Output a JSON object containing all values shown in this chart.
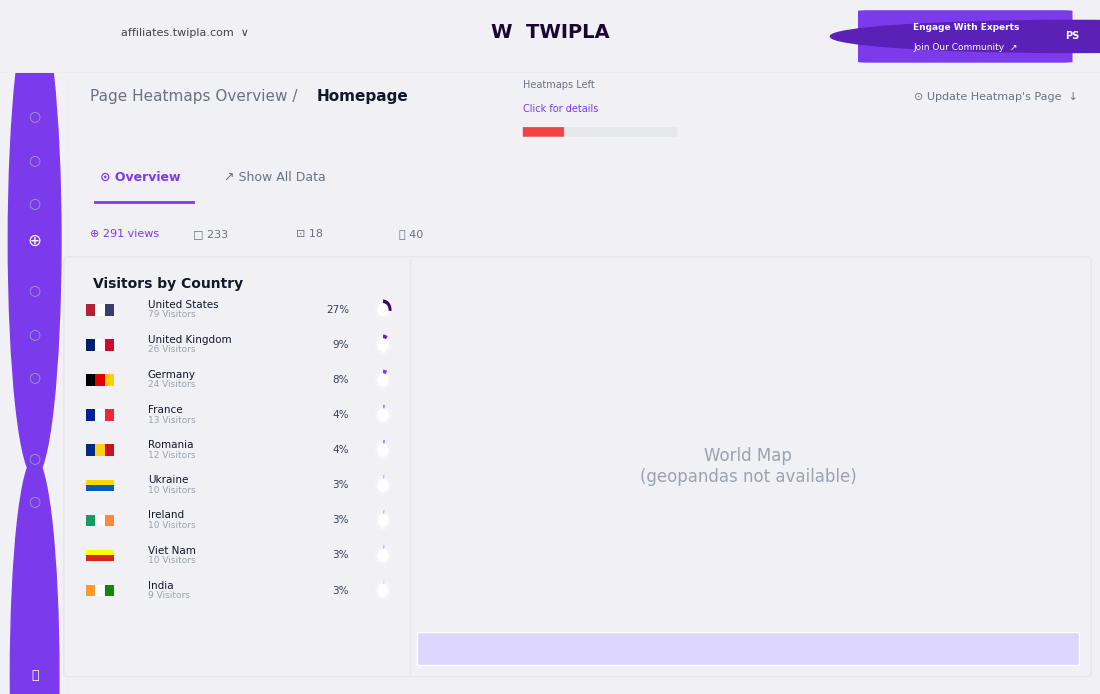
{
  "bg_color": "#f0f0f5",
  "panel_color": "#ffffff",
  "title_main": "Page Heatmaps Overview / ",
  "title_bold": "Homepage",
  "header_bg": "#ffffff",
  "sidebar_color": "#2d1b69",
  "top_bar_color": "#ffffff",
  "twipla_color": "#6b21a8",
  "cta_bg": "#7c3aed",
  "cta_text": "Engage With Experts\nJoin Our Community",
  "nav_items": [
    "affiliates.twipla.com"
  ],
  "tab_views": "291 views",
  "tab_desktop": "233",
  "tab_tablet": "18",
  "tab_mobile": "40",
  "section_title": "Visitors by Country",
  "countries": [
    {
      "name": "United States",
      "visitors": 79,
      "pct": 27,
      "color": "#3b0764"
    },
    {
      "name": "United Kingdom",
      "visitors": 26,
      "pct": 9,
      "color": "#6b21a8"
    },
    {
      "name": "Germany",
      "visitors": 24,
      "pct": 8,
      "color": "#7c3aed"
    },
    {
      "name": "France",
      "visitors": 13,
      "pct": 4,
      "color": "#a78bfa"
    },
    {
      "name": "Romania",
      "visitors": 12,
      "pct": 4,
      "color": "#a78bfa"
    },
    {
      "name": "Ukraine",
      "visitors": 10,
      "pct": 3,
      "color": "#c4b5fd"
    },
    {
      "name": "Ireland",
      "visitors": 10,
      "pct": 3,
      "color": "#c4b5fd"
    },
    {
      "name": "Viet Nam",
      "visitors": 10,
      "pct": 3,
      "color": "#c4b5fd"
    },
    {
      "name": "India",
      "visitors": 9,
      "pct": 3,
      "color": "#ddd6fe"
    }
  ],
  "flag_colors": {
    "United States": [
      "#B22234",
      "#FFFFFF",
      "#3C3B6E"
    ],
    "United Kingdom": [
      "#012169",
      "#FFFFFF",
      "#C8102E"
    ],
    "Germany": [
      "#000000",
      "#DD0000",
      "#FFCE00"
    ],
    "France": [
      "#002395",
      "#FFFFFF",
      "#ED2939"
    ],
    "Romania": [
      "#002B7F",
      "#FCD116",
      "#CE1126"
    ],
    "Ukraine": [
      "#005BBB",
      "#FFD500"
    ],
    "Ireland": [
      "#169B62",
      "#FFFFFF",
      "#FF883E"
    ],
    "Viet Nam": [
      "#DA251D",
      "#FFFF00"
    ],
    "India": [
      "#FF9933",
      "#FFFFFF",
      "#138808"
    ]
  },
  "map_country_colors": {
    "USA": "#3b0764",
    "Canada": "#9d4edd",
    "UK": "#6b21a8",
    "Germany": "#6b21a8",
    "France": "#c4b5fd",
    "Romania": "#c4b5fd",
    "Ukraine": "#c4b5fd",
    "Ireland": "#c4b5fd",
    "VietNam": "#c4b5fd",
    "Australia": "#b39ddb",
    "Brazil": "#b39ddb",
    "Antarctica": "#ddd6fe",
    "default_land": "#d8b4fe",
    "light_land": "#e9d5ff",
    "very_light": "#f3e8ff",
    "ocean": "#ffffff",
    "border": "#ffffff"
  }
}
